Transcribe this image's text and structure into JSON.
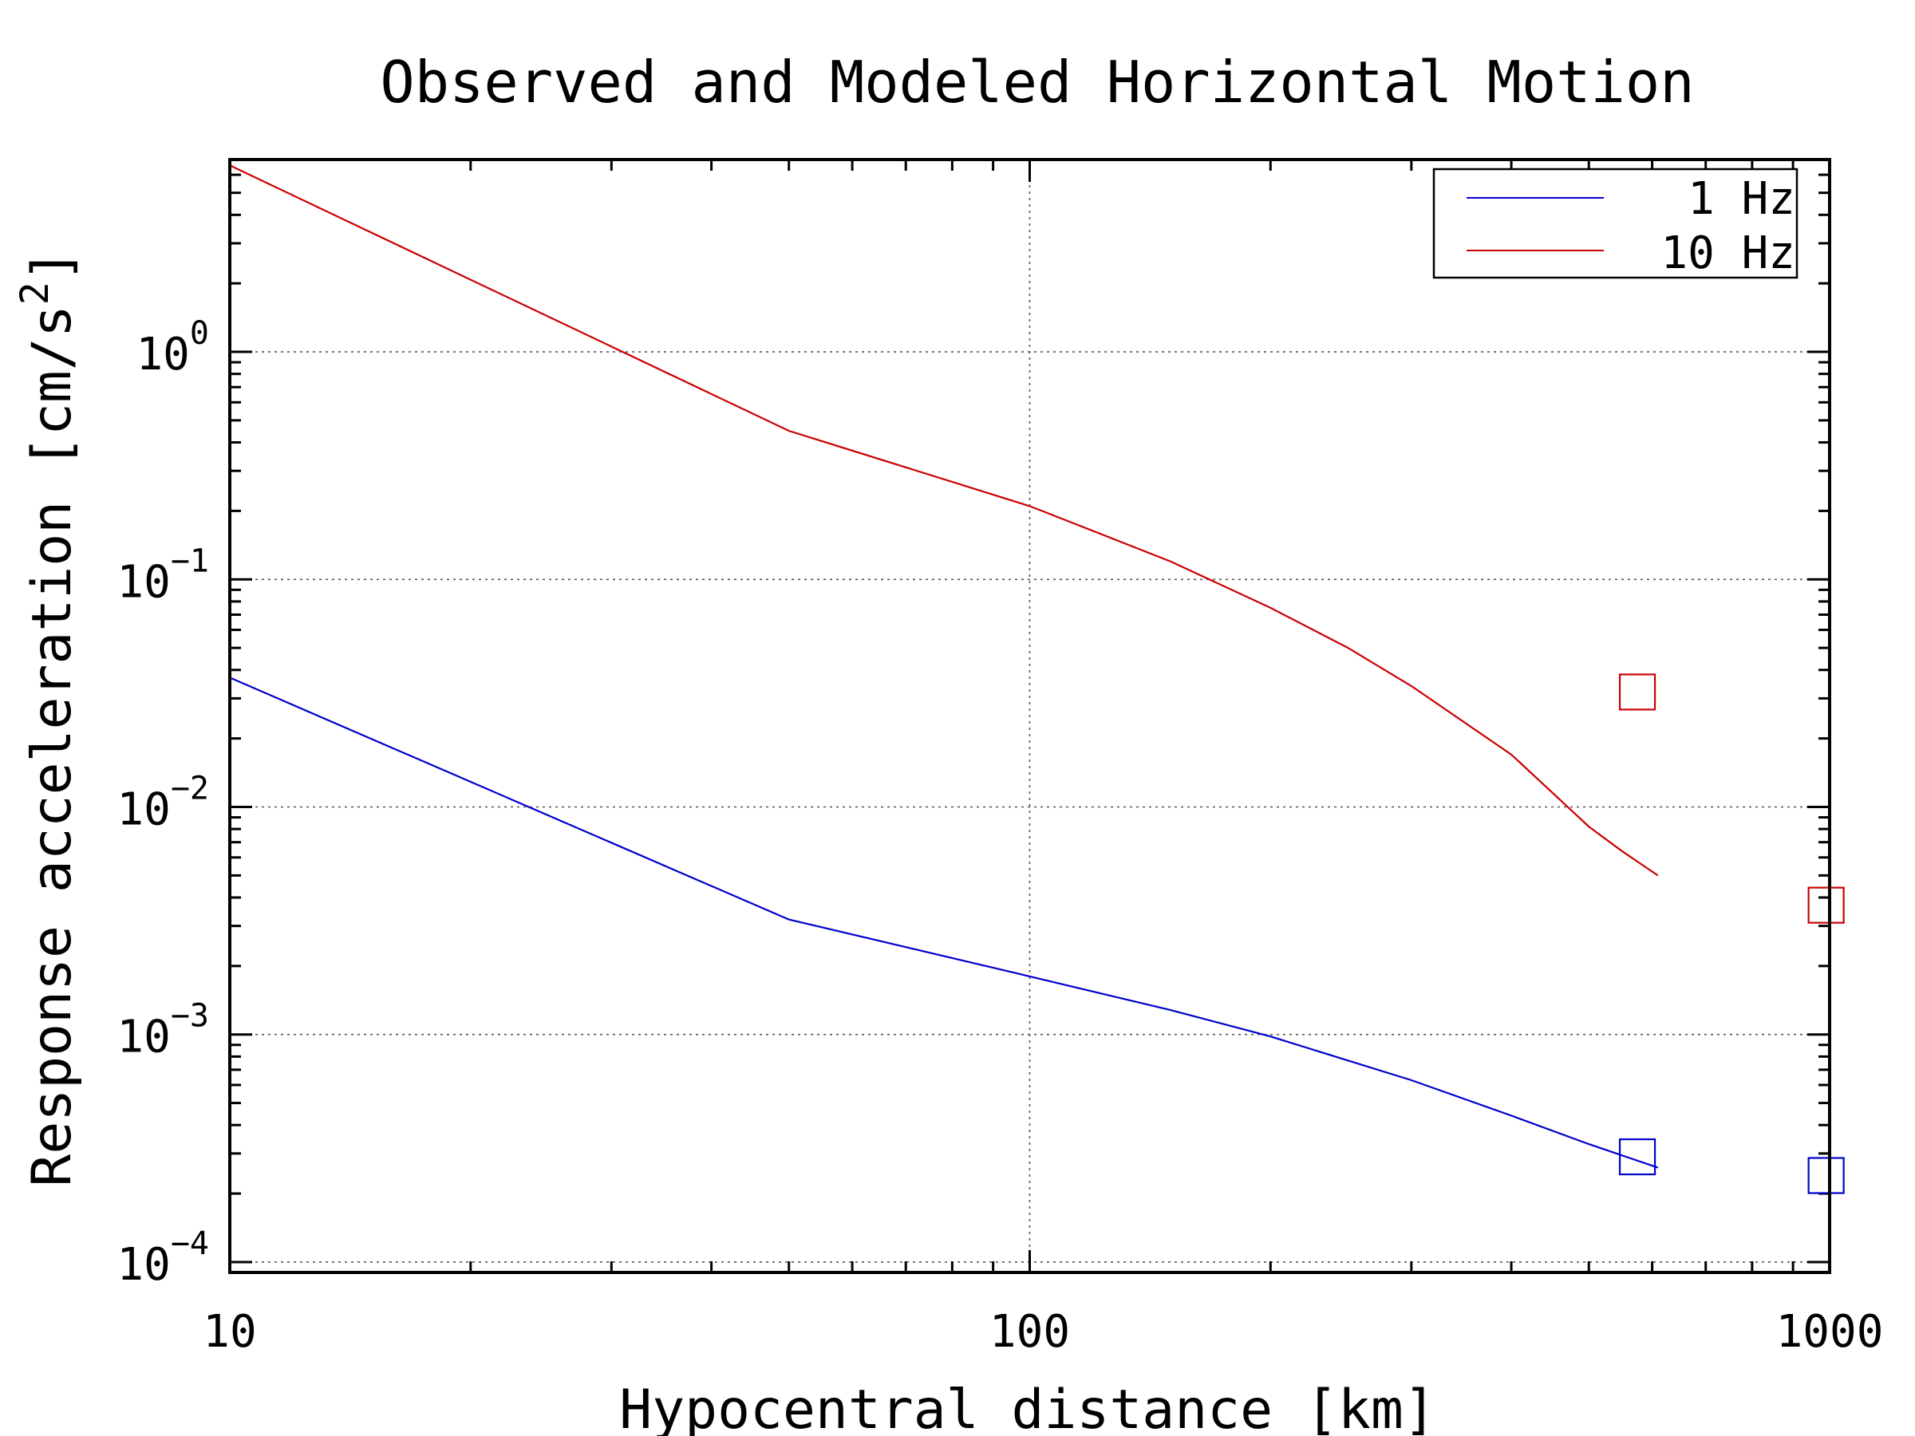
{
  "chart_data": {
    "type": "line",
    "title": "Observed and Modeled Horizontal Motion",
    "xlabel": "Hypocentral distance [km]",
    "ylabel_main": "Response acceleration [cm/s",
    "ylabel_sup": "2",
    "ylabel_tail": "]",
    "xscale": "log",
    "yscale": "log",
    "xlim": [
      10,
      1000
    ],
    "ylim": [
      9e-05,
      7
    ],
    "grid": true,
    "legend_position": "top-right",
    "x_ticks": [
      {
        "value": 10,
        "label": "10"
      },
      {
        "value": 100,
        "label": "100"
      },
      {
        "value": 1000,
        "label": "1000"
      }
    ],
    "y_ticks": [
      {
        "value": 0.0001,
        "base": "10",
        "exp": "−4"
      },
      {
        "value": 0.001,
        "base": "10",
        "exp": "−3"
      },
      {
        "value": 0.01,
        "base": "10",
        "exp": "−2"
      },
      {
        "value": 0.1,
        "base": "10",
        "exp": "−1"
      },
      {
        "value": 1,
        "base": "10",
        "exp": "0"
      }
    ],
    "series": [
      {
        "name": "1 Hz",
        "color": "#0000cc",
        "kind": "line",
        "x": [
          10,
          50,
          100,
          150,
          200,
          300,
          400,
          500,
          610
        ],
        "y": [
          0.037,
          0.0032,
          0.0018,
          0.00128,
          0.00098,
          0.00063,
          0.00044,
          0.00033,
          0.00026
        ]
      },
      {
        "name": "10 Hz",
        "color": "#cc0000",
        "kind": "line",
        "x": [
          10,
          50,
          100,
          150,
          200,
          250,
          300,
          400,
          500,
          550,
          610
        ],
        "y": [
          6.6,
          0.45,
          0.21,
          0.12,
          0.075,
          0.05,
          0.034,
          0.017,
          0.0082,
          0.0064,
          0.005
        ]
      }
    ],
    "observed_points": [
      {
        "x": 575,
        "y": 0.032,
        "color": "#cc0000"
      },
      {
        "x": 990,
        "y": 0.0037,
        "color": "#cc0000"
      },
      {
        "x": 575,
        "y": 0.00029,
        "color": "#0000cc"
      },
      {
        "x": 990,
        "y": 0.00024,
        "color": "#0000cc"
      }
    ]
  }
}
